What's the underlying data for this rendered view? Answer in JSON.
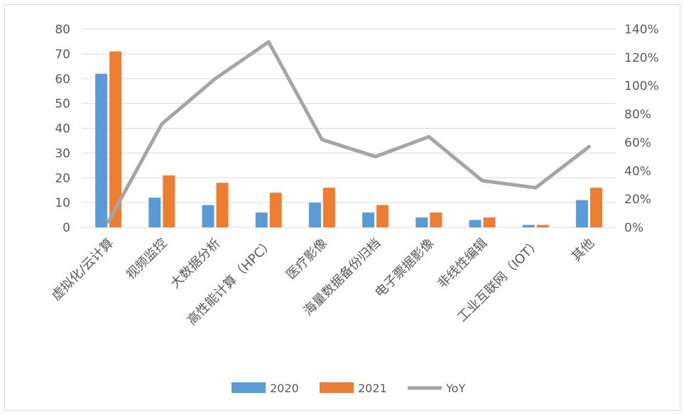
{
  "chart_data": {
    "type": "bar",
    "categories": [
      "虚拟化/云计算",
      "视频监控",
      "大数据分析",
      "高性能计算（HPC）",
      "医疗影像",
      "海量数据备份归档",
      "电子票据影像",
      "非线性编辑",
      "工业互联网（IOT）",
      "其他"
    ],
    "series": [
      {
        "name": "2020",
        "type": "bar",
        "axis": "left",
        "color": "#5b9bd5",
        "values": [
          62,
          12,
          9,
          6,
          10,
          6,
          4,
          3,
          1,
          11
        ]
      },
      {
        "name": "2021",
        "type": "bar",
        "axis": "left",
        "color": "#ed7d31",
        "values": [
          71,
          21,
          18,
          14,
          16,
          9,
          6,
          4,
          1,
          16
        ]
      },
      {
        "name": "YoY",
        "type": "line",
        "axis": "right",
        "color": "#a5a5a5",
        "values": [
          0.04,
          0.73,
          1.05,
          1.31,
          0.62,
          0.5,
          0.64,
          0.33,
          0.28,
          0.57
        ]
      }
    ],
    "ylim_left": [
      0,
      80
    ],
    "yticks_left": [
      "0",
      "10",
      "20",
      "30",
      "40",
      "50",
      "60",
      "70",
      "80"
    ],
    "ylim_right": [
      0,
      1.4
    ],
    "yticks_right": [
      "0%",
      "20%",
      "40%",
      "60%",
      "80%",
      "100%",
      "120%",
      "140%"
    ],
    "grid": true,
    "legend_position": "bottom"
  }
}
